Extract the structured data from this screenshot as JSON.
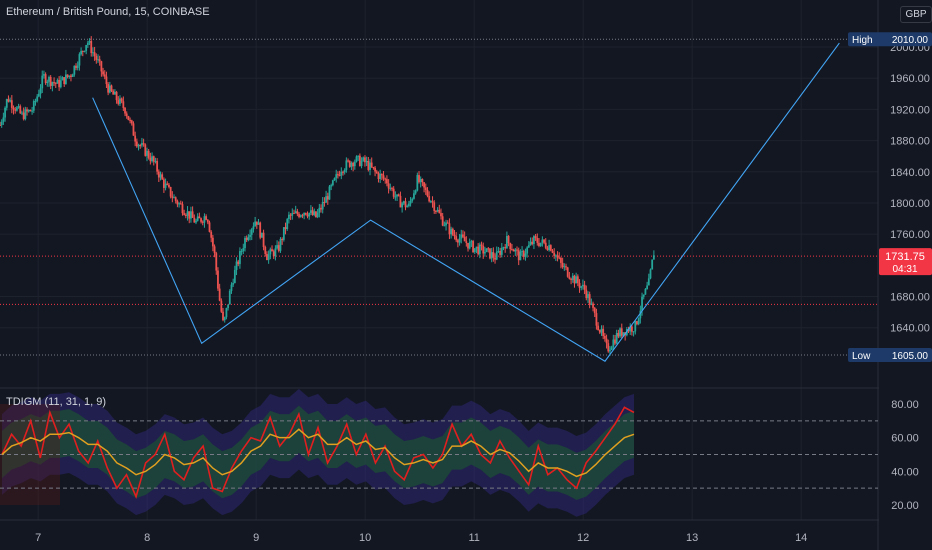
{
  "header": {
    "title": "Ethereum / British Pound, 15, COINBASE",
    "currency": "GBP"
  },
  "indicator": {
    "label": "TDIGM (11, 31, 1, 9)"
  },
  "colors": {
    "background": "#131722",
    "grid": "#1e222d",
    "candle_up": "#26a69a",
    "candle_down": "#ef5350",
    "pattern_line": "#42a5f5",
    "rsi": "#e21f1f",
    "signal": "#e0a020",
    "green_band": "#1c5c2e",
    "blue_band": "#3a2e9e",
    "price_tag": "#f23645",
    "extreme_tag": "#1e3a68"
  },
  "chart_data": [
    {
      "type": "candlestick",
      "x_ticks": [
        "7",
        "8",
        "9",
        "10",
        "11",
        "12",
        "13",
        "14"
      ],
      "y_ticks": [
        "2000.00",
        "1960.00",
        "1920.00",
        "1880.00",
        "1840.00",
        "1800.00",
        "1760.00",
        "1680.00",
        "1640.00"
      ],
      "ylim": [
        1590,
        2030
      ],
      "xlim": [
        6.65,
        15.2
      ],
      "grid": true,
      "high": {
        "label": "High",
        "value": "2010.00"
      },
      "low": {
        "label": "Low",
        "value": "1605.00"
      },
      "last_price": {
        "value": "1731.75",
        "countdown": "04:31"
      },
      "reference_levels": [
        1731.75,
        1670.0
      ],
      "price_path": [
        [
          6.65,
          1900
        ],
        [
          6.72,
          1935
        ],
        [
          6.85,
          1912
        ],
        [
          6.95,
          1920
        ],
        [
          7.05,
          1962
        ],
        [
          7.18,
          1952
        ],
        [
          7.3,
          1965
        ],
        [
          7.45,
          2008
        ],
        [
          7.55,
          1980
        ],
        [
          7.65,
          1945
        ],
        [
          7.8,
          1920
        ],
        [
          7.9,
          1880
        ],
        [
          8.05,
          1855
        ],
        [
          8.15,
          1825
        ],
        [
          8.25,
          1805
        ],
        [
          8.35,
          1790
        ],
        [
          8.45,
          1775
        ],
        [
          8.55,
          1785
        ],
        [
          8.62,
          1732
        ],
        [
          8.66,
          1680
        ],
        [
          8.7,
          1642
        ],
        [
          8.78,
          1700
        ],
        [
          8.9,
          1755
        ],
        [
          9.0,
          1780
        ],
        [
          9.1,
          1732
        ],
        [
          9.2,
          1740
        ],
        [
          9.3,
          1782
        ],
        [
          9.45,
          1790
        ],
        [
          9.55,
          1782
        ],
        [
          9.65,
          1808
        ],
        [
          9.78,
          1845
        ],
        [
          9.9,
          1855
        ],
        [
          10.0,
          1852
        ],
        [
          10.1,
          1838
        ],
        [
          10.2,
          1828
        ],
        [
          10.3,
          1803
        ],
        [
          10.4,
          1795
        ],
        [
          10.48,
          1830
        ],
        [
          10.6,
          1805
        ],
        [
          10.7,
          1780
        ],
        [
          10.8,
          1760
        ],
        [
          10.9,
          1752
        ],
        [
          11.0,
          1742
        ],
        [
          11.1,
          1738
        ],
        [
          11.2,
          1730
        ],
        [
          11.3,
          1752
        ],
        [
          11.42,
          1730
        ],
        [
          11.55,
          1752
        ],
        [
          11.7,
          1745
        ],
        [
          11.8,
          1720
        ],
        [
          11.92,
          1702
        ],
        [
          12.02,
          1688
        ],
        [
          12.12,
          1650
        ],
        [
          12.22,
          1612
        ],
        [
          12.32,
          1632
        ],
        [
          12.4,
          1638
        ],
        [
          12.48,
          1642
        ],
        [
          12.55,
          1678
        ],
        [
          12.6,
          1695
        ],
        [
          12.65,
          1738
        ]
      ],
      "pattern_lines": [
        [
          [
            7.5,
            1935
          ],
          [
            8.5,
            1620
          ],
          [
            10.05,
            1778
          ],
          [
            12.2,
            1597
          ],
          [
            14.35,
            2005
          ]
        ]
      ]
    },
    {
      "type": "line",
      "name": "TDIGM",
      "y_ticks": [
        "80.00",
        "60.00",
        "40.00",
        "20.00"
      ],
      "ylim": [
        10,
        90
      ],
      "levels": [
        70,
        50,
        30
      ],
      "series": [
        {
          "values": [
            50,
            62,
            55,
            70,
            48,
            75,
            60,
            68,
            52,
            45,
            58,
            42,
            30,
            38,
            25,
            45,
            50,
            62,
            40,
            35,
            48,
            55,
            30,
            28,
            42,
            52,
            60,
            58,
            72,
            55,
            62,
            74,
            50,
            66,
            45,
            55,
            68,
            50,
            62,
            45,
            55,
            40,
            35,
            48,
            50,
            42,
            50,
            68,
            55,
            62,
            50,
            45,
            58,
            48,
            40,
            32,
            55,
            38,
            42,
            35,
            30,
            45,
            52,
            60,
            68,
            78,
            75
          ]
        },
        {
          "values": [
            50,
            55,
            57,
            60,
            58,
            62,
            62,
            63,
            60,
            56,
            56,
            52,
            45,
            42,
            38,
            40,
            44,
            50,
            48,
            44,
            45,
            48,
            42,
            38,
            40,
            45,
            52,
            55,
            62,
            60,
            60,
            65,
            60,
            62,
            56,
            56,
            60,
            56,
            58,
            53,
            54,
            48,
            44,
            45,
            47,
            45,
            47,
            55,
            55,
            58,
            55,
            50,
            53,
            51,
            46,
            40,
            45,
            42,
            42,
            40,
            37,
            39,
            44,
            50,
            55,
            60,
            62
          ]
        }
      ]
    }
  ]
}
